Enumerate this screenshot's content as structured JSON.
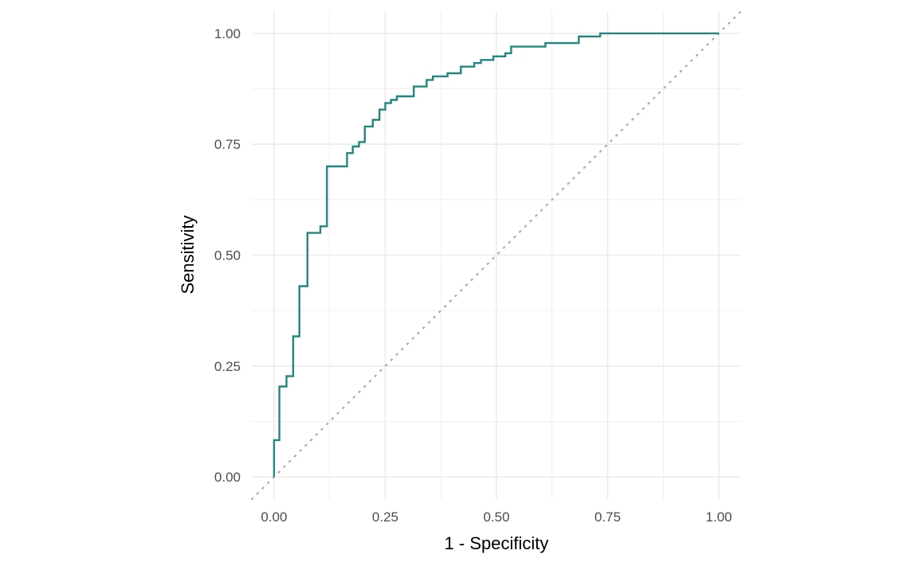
{
  "chart_data": {
    "type": "line",
    "title": "",
    "xlabel": "1 - Specificity",
    "ylabel": "Sensitivity",
    "xlim": [
      -0.05,
      1.05
    ],
    "ylim": [
      -0.05,
      1.05
    ],
    "x_ticks": [
      "0.00",
      "0.25",
      "0.50",
      "0.75",
      "1.00"
    ],
    "y_ticks": [
      "0.00",
      "0.25",
      "0.50",
      "0.75",
      "1.00"
    ],
    "grid": true,
    "aspect": "equal",
    "colors": {
      "roc": "#21877f",
      "reference": "#aaaaaa",
      "grid": "#ebebeb"
    },
    "series": [
      {
        "style": "solid",
        "step": true,
        "x": [
          0.0,
          0.0,
          0.012,
          0.012,
          0.028,
          0.028,
          0.043,
          0.043,
          0.057,
          0.057,
          0.075,
          0.075,
          0.104,
          0.104,
          0.119,
          0.119,
          0.164,
          0.164,
          0.177,
          0.177,
          0.191,
          0.191,
          0.204,
          0.204,
          0.222,
          0.222,
          0.237,
          0.237,
          0.25,
          0.25,
          0.263,
          0.263,
          0.276,
          0.276,
          0.314,
          0.314,
          0.343,
          0.343,
          0.357,
          0.357,
          0.39,
          0.39,
          0.42,
          0.42,
          0.45,
          0.45,
          0.465,
          0.465,
          0.493,
          0.493,
          0.52,
          0.52,
          0.533,
          0.533,
          0.61,
          0.61,
          0.685,
          0.685,
          0.733,
          0.733,
          1.0
        ],
        "y": [
          0.0,
          0.083,
          0.083,
          0.204,
          0.204,
          0.227,
          0.227,
          0.317,
          0.317,
          0.43,
          0.43,
          0.55,
          0.55,
          0.565,
          0.565,
          0.7,
          0.7,
          0.73,
          0.73,
          0.745,
          0.745,
          0.755,
          0.755,
          0.79,
          0.79,
          0.805,
          0.805,
          0.828,
          0.828,
          0.843,
          0.843,
          0.85,
          0.85,
          0.858,
          0.858,
          0.88,
          0.88,
          0.895,
          0.895,
          0.903,
          0.903,
          0.91,
          0.91,
          0.925,
          0.925,
          0.933,
          0.933,
          0.94,
          0.94,
          0.948,
          0.948,
          0.955,
          0.955,
          0.97,
          0.97,
          0.978,
          0.978,
          0.993,
          0.993,
          1.0,
          1.0
        ]
      },
      {
        "style": "dotted",
        "x": [
          -0.05,
          1.05
        ],
        "y": [
          -0.05,
          1.05
        ]
      }
    ]
  }
}
